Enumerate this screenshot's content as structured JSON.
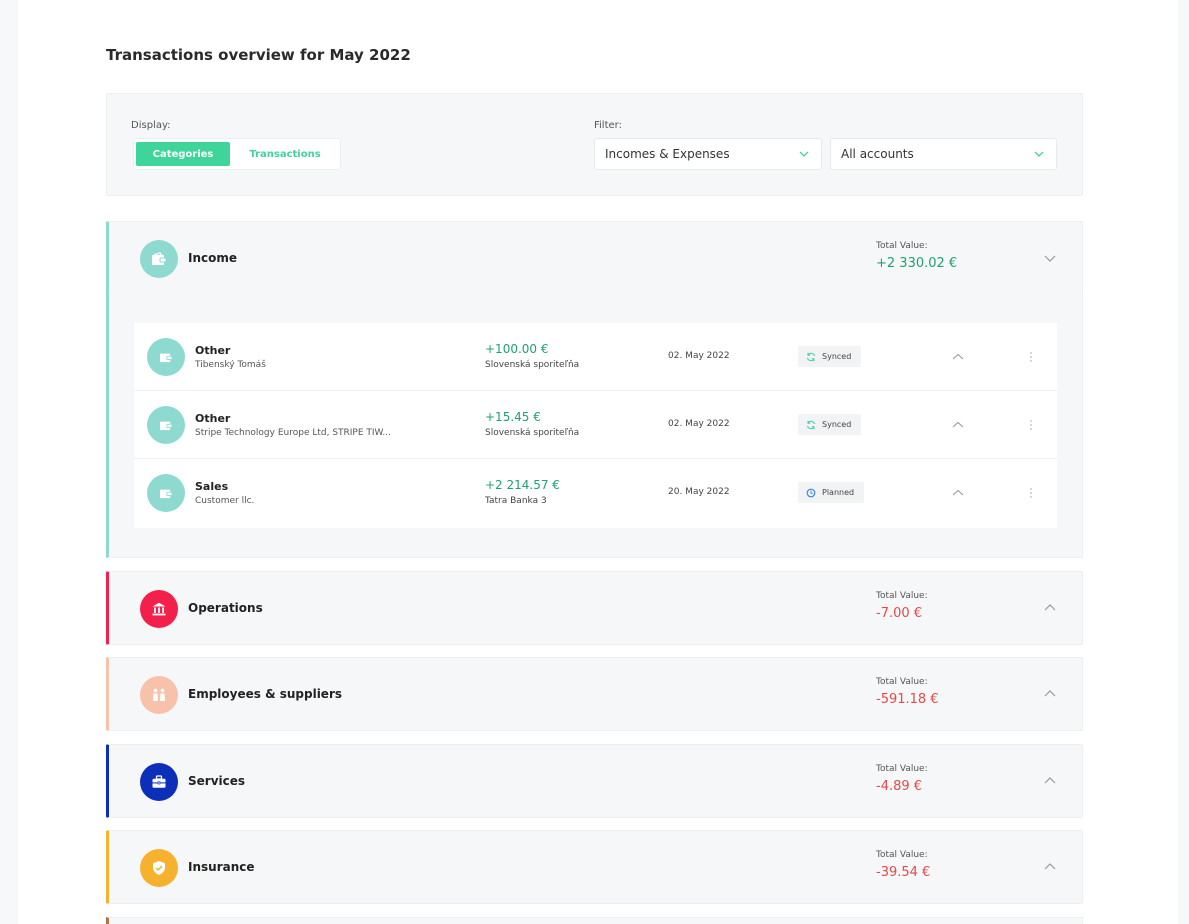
{
  "page": {
    "title": "Transactions overview for May 2022"
  },
  "controls": {
    "display_label": "Display:",
    "display_options": [
      "Categories",
      "Transactions"
    ],
    "display_selected": "Categories",
    "filter_label": "Filter:",
    "filter_type": "Incomes & Expenses",
    "filter_account": "All accounts"
  },
  "total_label": "Total Value:",
  "categories": [
    {
      "name": "Income",
      "total": "+2 330.02 €",
      "color": "#8ed9d0",
      "icon": "wallet-icon",
      "expanded": true
    },
    {
      "name": "Operations",
      "total": "-7.00 €",
      "color": "#f2204a",
      "icon": "bank-icon",
      "expanded": false
    },
    {
      "name": "Employees & suppliers",
      "total": "-591.18 €",
      "color": "#f8c1aa",
      "icon": "people-icon",
      "expanded": false
    },
    {
      "name": "Services",
      "total": "-4.89 €",
      "color": "#0b2fb8",
      "icon": "briefcase-icon",
      "expanded": false
    },
    {
      "name": "Insurance",
      "total": "-39.54 €",
      "color": "#f6b12e",
      "icon": "shield-icon",
      "expanded": false
    }
  ],
  "transactions": [
    {
      "name": "Other",
      "party": "Tibenský Tomáš",
      "amount": "+100.00 €",
      "bank": "Slovenská sporiteľňa",
      "date": "02. May 2022",
      "status": "Synced",
      "status_icon": "sync-icon"
    },
    {
      "name": "Other",
      "party": "Stripe Technology Europe Ltd, STRIPE TIW...",
      "amount": "+15.45 €",
      "bank": "Slovenská sporiteľňa",
      "date": "02. May 2022",
      "status": "Synced",
      "status_icon": "sync-icon"
    },
    {
      "name": "Sales",
      "party": "Customer llc.",
      "amount": "+2 214.57 €",
      "bank": "Tatra Banka 3",
      "date": "20. May 2022",
      "status": "Planned",
      "status_icon": "clock-icon"
    }
  ],
  "colors": {
    "accent": "#3fd59a",
    "positive": "#1fa36b",
    "negative": "#e64848",
    "sync": "#3fd59a",
    "planned": "#2f80ed"
  }
}
